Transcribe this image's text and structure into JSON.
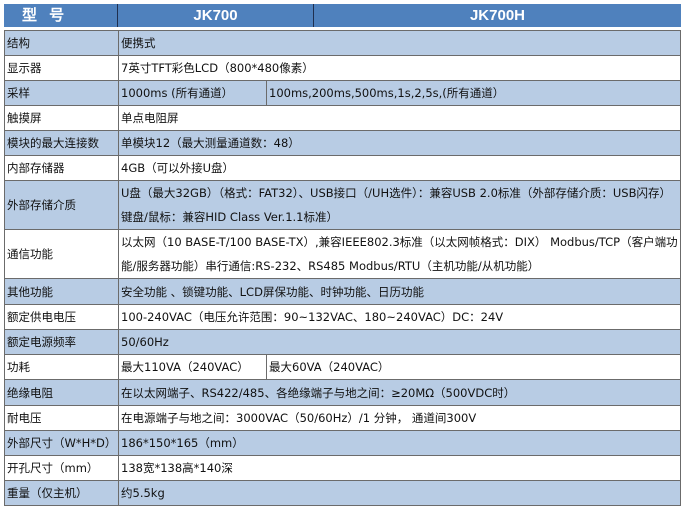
{
  "header": {
    "col0": "型 号",
    "col1": "JK700",
    "col2": "JK700H"
  },
  "colors": {
    "header_bg": "#4f81bd",
    "row_shade": "#b8cce4"
  },
  "rows": [
    {
      "label": "结构",
      "value": "便携式"
    },
    {
      "label": "显示器",
      "value": "7英寸TFT彩色LCD（800*480像素）"
    },
    {
      "label": "采样",
      "jk700": "1000ms (所有通道）",
      "jk700h": "100ms,200ms,500ms,1s,2,5s,(所有通道）"
    },
    {
      "label": "触摸屏",
      "value": "单点电阻屏"
    },
    {
      "label": "模块的最大连接数",
      "value": "单模块12（最大测量通道数：48）"
    },
    {
      "label": "内部存储器",
      "value": "4GB（可以外接U盘）"
    },
    {
      "label": "外部存储介质",
      "value": "U盘（最大32GB）（格式：FAT32）、USB接口（/UH选件）：兼容USB 2.0标准（外部存储介质：USB闪存）键盘/鼠标：兼容HID Class Ver.1.1标准）"
    },
    {
      "label": "通信功能",
      "value": "以太网（10 BASE-T/100 BASE-TX）,兼容IEEE802.3标准（以太网帧格式：DIX） Modbus/TCP（客户端功能/服务器功能）串行通信:RS-232、RS485   Modbus/RTU（主机功能/从机功能）"
    },
    {
      "label": "其他功能",
      "value": "安全功能 、锁键功能、LCD屏保功能、时钟功能、日历功能"
    },
    {
      "label": "额定供电电压",
      "value": "100-240VAC（电压允许范围：90~132VAC、180~240VAC）DC：24V"
    },
    {
      "label": "额定电源频率",
      "value": "50/60Hz"
    },
    {
      "label": "功耗",
      "jk700": "最大110VA（240VAC）",
      "jk700h": "最大60VA（240VAC）"
    },
    {
      "label": "绝缘电阻",
      "value": "在以太网端子、RS422/485、各绝缘端子与地之间：≥20MΩ（500VDC时）"
    },
    {
      "label": "耐电压",
      "value": "在电源端子与地之间：3000VAC（50/60Hz）/1 分钟， 通道间300V"
    },
    {
      "label": "外部尺寸（W*H*D）",
      "value": "186*150*165（mm）"
    },
    {
      "label": "开孔尺寸（mm）",
      "value": "138宽*138高*140深"
    },
    {
      "label": "重量（仅主机）",
      "value": "约5.5kg"
    }
  ]
}
